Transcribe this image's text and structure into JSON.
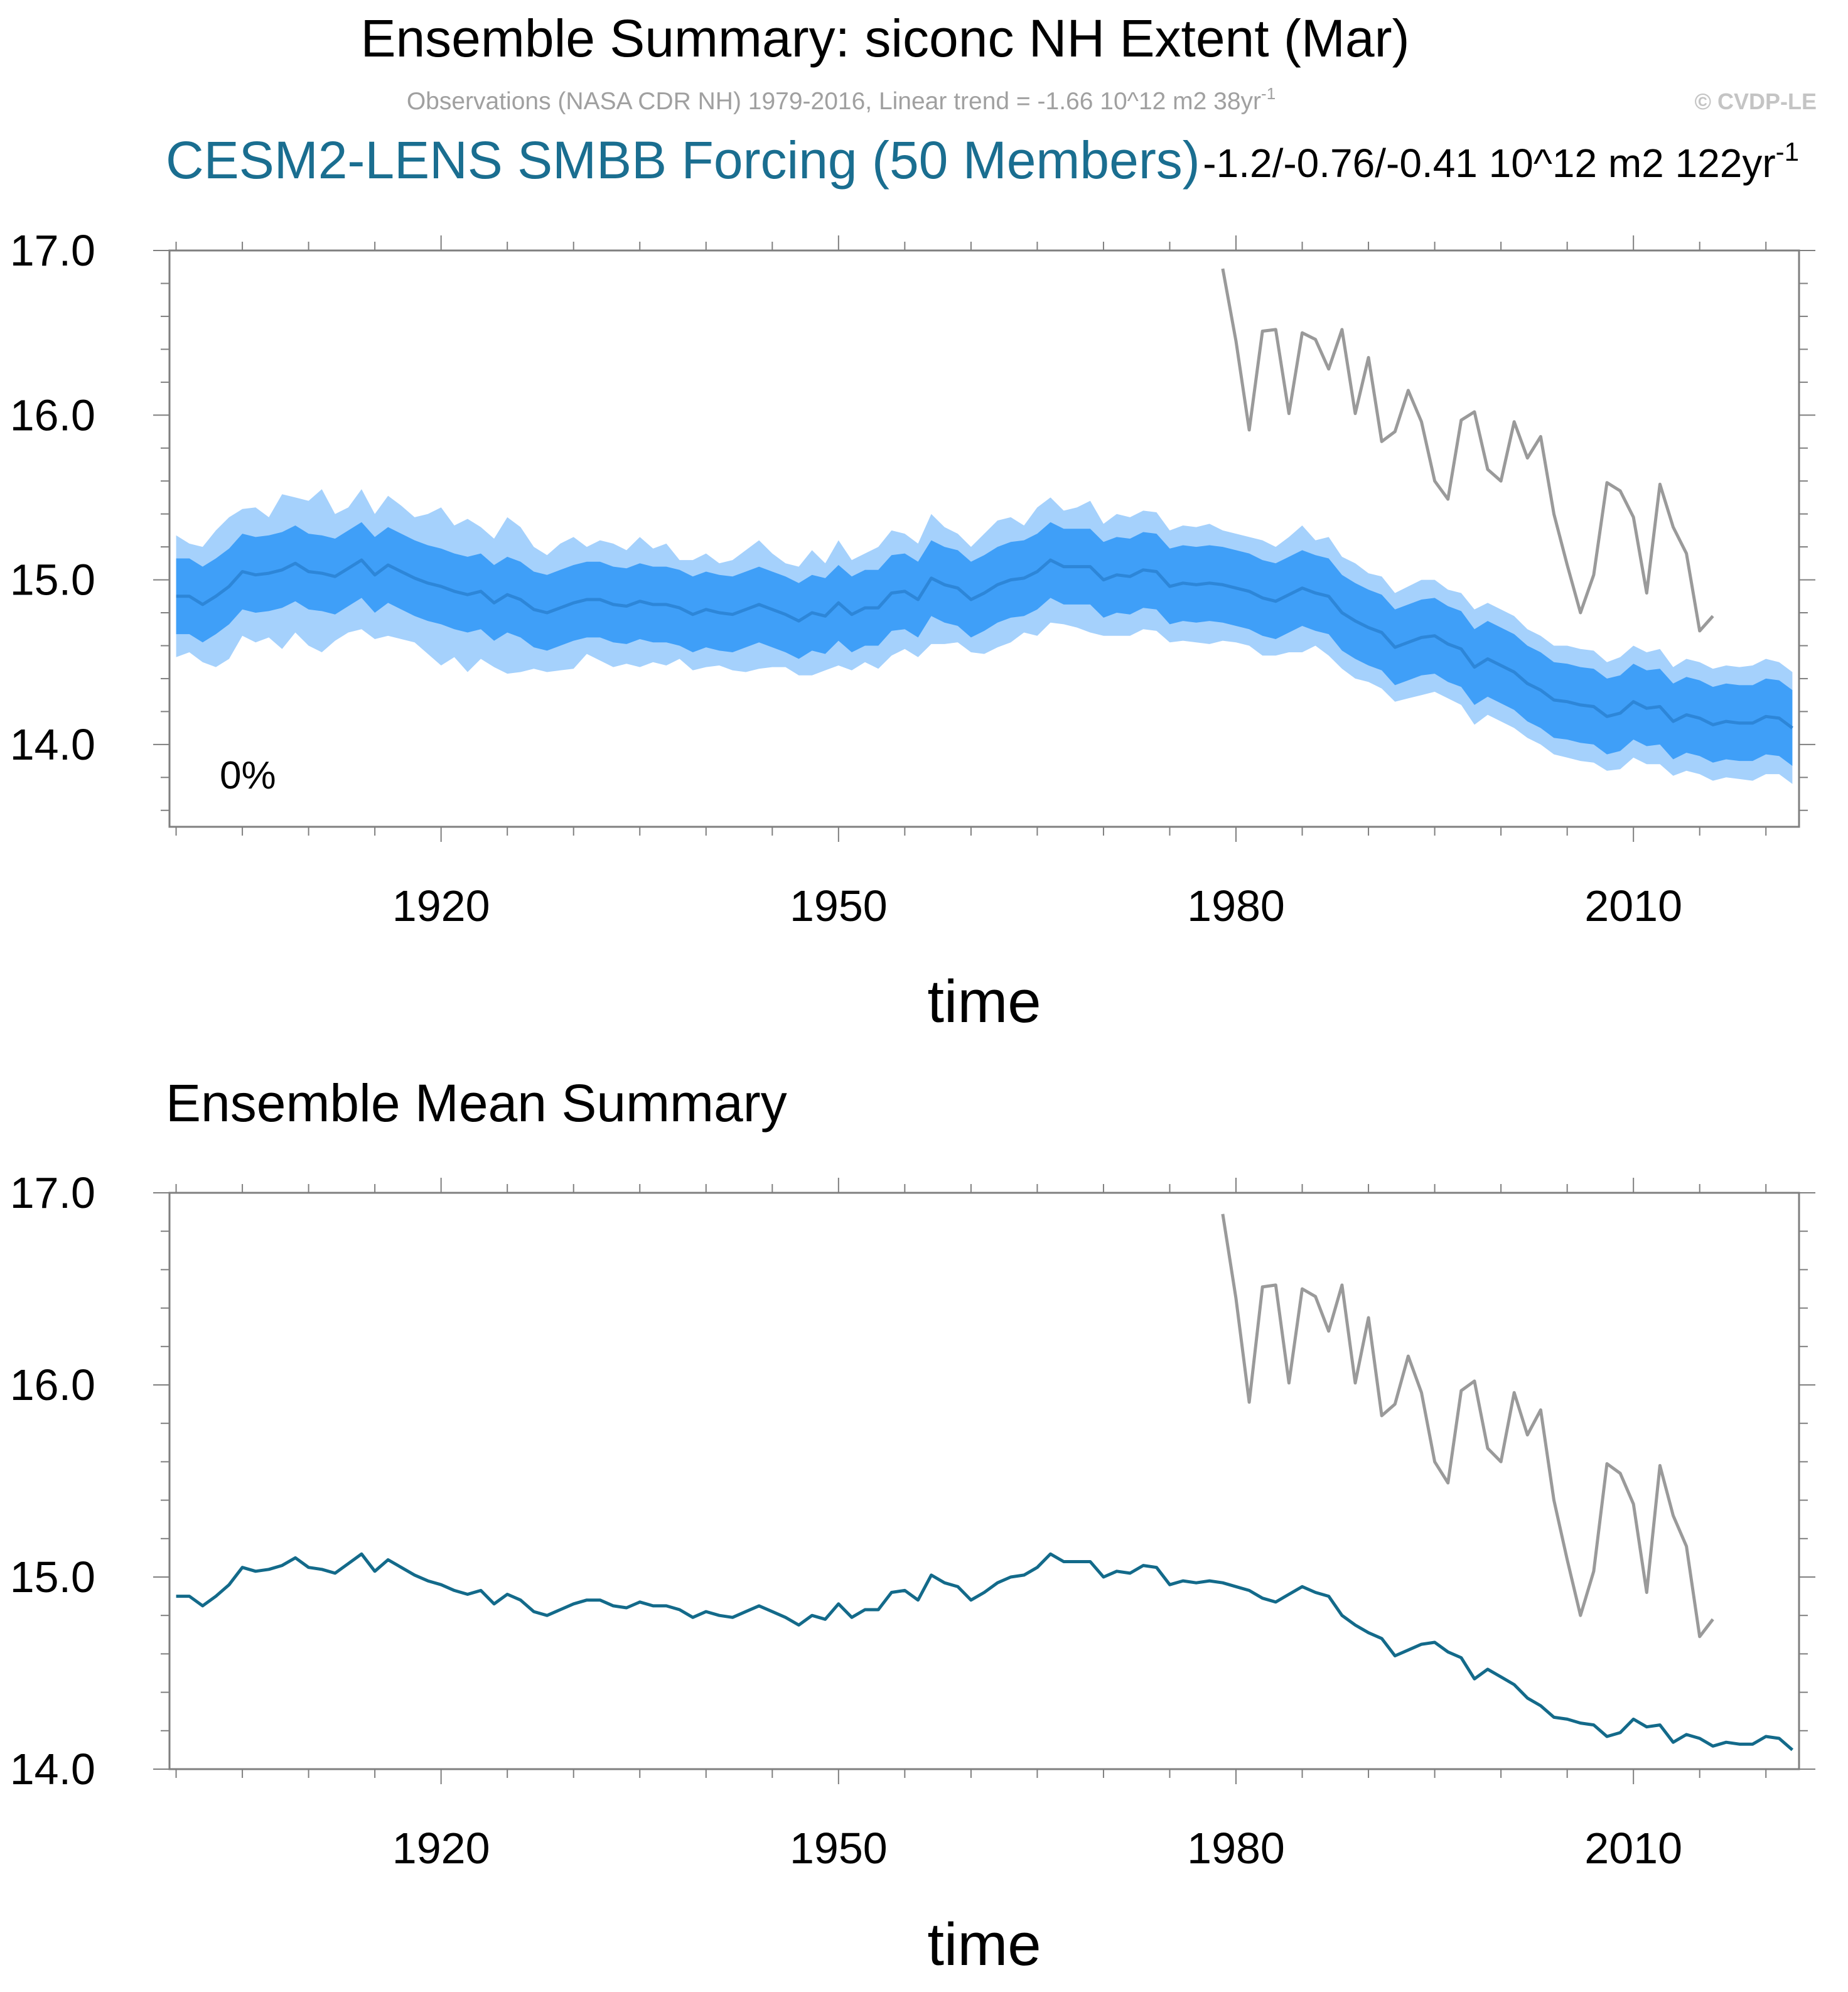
{
  "header": {
    "title": "Ensemble Summary: siconc NH Extent (Mar)",
    "obs_note": "Observations (NASA CDR NH) 1979-2016, Linear trend = -1.66 10^12 m2 38yr",
    "obs_note_sup": "-1",
    "copyright": "© CVDP-LE",
    "model_label": "CESM2-LENS SMBB Forcing (50 Members)",
    "trend_text": "-1.2/-0.76/-0.41 10^12 m2 122yr",
    "trend_sup": "-1"
  },
  "colors": {
    "outer_band": "#a5d1fc",
    "inner_band": "#3f9ff8",
    "mean_top": "#2d86d8",
    "mean_bottom": "#136a8a",
    "obs": "#9a9a9a",
    "model_label": "#1a6e90",
    "obs_note": "#a0a0a0",
    "copyright": "#c4c4c4"
  },
  "chart_data": [
    {
      "type": "area",
      "title": "",
      "panel_note": "0%",
      "xlabel": "time",
      "ylabel": "",
      "xlim": [
        1899.5,
        2022.5
      ],
      "ylim": [
        13.5,
        17.0
      ],
      "x_ticks": [
        1920,
        1950,
        1980,
        2010
      ],
      "x_tick_labels": [
        "1920",
        "1950",
        "1980",
        "2010"
      ],
      "y_ticks": [
        14.0,
        15.0,
        16.0,
        17.0
      ],
      "y_tick_labels": [
        "14.0",
        "15.0",
        "16.0",
        "17.0"
      ],
      "x": [
        1900,
        1901,
        1902,
        1903,
        1904,
        1905,
        1906,
        1907,
        1908,
        1909,
        1910,
        1911,
        1912,
        1913,
        1914,
        1915,
        1916,
        1917,
        1918,
        1919,
        1920,
        1921,
        1922,
        1923,
        1924,
        1925,
        1926,
        1927,
        1928,
        1929,
        1930,
        1931,
        1932,
        1933,
        1934,
        1935,
        1936,
        1937,
        1938,
        1939,
        1940,
        1941,
        1942,
        1943,
        1944,
        1945,
        1946,
        1947,
        1948,
        1949,
        1950,
        1951,
        1952,
        1953,
        1954,
        1955,
        1956,
        1957,
        1958,
        1959,
        1960,
        1961,
        1962,
        1963,
        1964,
        1965,
        1966,
        1967,
        1968,
        1969,
        1970,
        1971,
        1972,
        1973,
        1974,
        1975,
        1976,
        1977,
        1978,
        1979,
        1980,
        1981,
        1982,
        1983,
        1984,
        1985,
        1986,
        1987,
        1988,
        1989,
        1990,
        1991,
        1992,
        1993,
        1994,
        1995,
        1996,
        1997,
        1998,
        1999,
        2000,
        2001,
        2002,
        2003,
        2004,
        2005,
        2006,
        2007,
        2008,
        2009,
        2010,
        2011,
        2012,
        2013,
        2014,
        2015,
        2016,
        2017,
        2018,
        2019,
        2020,
        2021,
        2022
      ],
      "series": [
        {
          "name": "ensemble_mean",
          "values": [
            14.9,
            14.9,
            14.85,
            14.9,
            14.96,
            15.05,
            15.03,
            15.04,
            15.06,
            15.1,
            15.05,
            15.04,
            15.02,
            15.07,
            15.12,
            15.03,
            15.09,
            15.05,
            15.01,
            14.98,
            14.96,
            14.93,
            14.91,
            14.93,
            14.86,
            14.91,
            14.88,
            14.82,
            14.8,
            14.83,
            14.86,
            14.88,
            14.88,
            14.85,
            14.84,
            14.87,
            14.85,
            14.85,
            14.83,
            14.79,
            14.82,
            14.8,
            14.79,
            14.82,
            14.85,
            14.82,
            14.79,
            14.75,
            14.8,
            14.78,
            14.86,
            14.79,
            14.83,
            14.83,
            14.92,
            14.93,
            14.88,
            15.01,
            14.97,
            14.95,
            14.88,
            14.92,
            14.97,
            15.0,
            15.01,
            15.05,
            15.12,
            15.08,
            15.08,
            15.08,
            15.0,
            15.03,
            15.02,
            15.06,
            15.05,
            14.96,
            14.98,
            14.97,
            14.98,
            14.97,
            14.95,
            14.93,
            14.89,
            14.87,
            14.91,
            14.95,
            14.92,
            14.9,
            14.8,
            14.75,
            14.71,
            14.68,
            14.59,
            14.62,
            14.65,
            14.66,
            14.61,
            14.58,
            14.47,
            14.52,
            14.48,
            14.44,
            14.37,
            14.33,
            14.27,
            14.26,
            14.24,
            14.23,
            14.17,
            14.19,
            14.26,
            14.22,
            14.23,
            14.14,
            14.18,
            14.16,
            14.12,
            14.14,
            14.13,
            14.13,
            14.17,
            14.16,
            14.1
          ]
        },
        {
          "name": "inner_band_upper",
          "values": [
            15.13,
            15.13,
            15.08,
            15.13,
            15.19,
            15.28,
            15.26,
            15.27,
            15.29,
            15.33,
            15.28,
            15.27,
            15.25,
            15.3,
            15.35,
            15.26,
            15.32,
            15.28,
            15.24,
            15.21,
            15.19,
            15.16,
            15.14,
            15.16,
            15.09,
            15.14,
            15.11,
            15.05,
            15.03,
            15.06,
            15.09,
            15.11,
            15.11,
            15.08,
            15.07,
            15.1,
            15.08,
            15.08,
            15.06,
            15.02,
            15.05,
            15.03,
            15.02,
            15.05,
            15.08,
            15.05,
            15.02,
            14.98,
            15.03,
            15.01,
            15.09,
            15.02,
            15.06,
            15.06,
            15.15,
            15.16,
            15.11,
            15.24,
            15.2,
            15.18,
            15.11,
            15.15,
            15.2,
            15.23,
            15.24,
            15.28,
            15.35,
            15.31,
            15.31,
            15.31,
            15.23,
            15.26,
            15.25,
            15.29,
            15.28,
            15.19,
            15.21,
            15.2,
            15.21,
            15.2,
            15.18,
            15.16,
            15.12,
            15.1,
            15.14,
            15.18,
            15.15,
            15.13,
            15.03,
            14.98,
            14.94,
            14.91,
            14.82,
            14.85,
            14.88,
            14.89,
            14.84,
            14.81,
            14.7,
            14.75,
            14.71,
            14.67,
            14.6,
            14.56,
            14.5,
            14.49,
            14.47,
            14.46,
            14.4,
            14.42,
            14.49,
            14.45,
            14.46,
            14.37,
            14.41,
            14.39,
            14.35,
            14.37,
            14.36,
            14.36,
            14.4,
            14.39,
            14.33
          ]
        },
        {
          "name": "inner_band_lower",
          "values": [
            14.67,
            14.67,
            14.62,
            14.67,
            14.73,
            14.82,
            14.8,
            14.81,
            14.83,
            14.87,
            14.82,
            14.81,
            14.79,
            14.84,
            14.89,
            14.8,
            14.86,
            14.82,
            14.78,
            14.75,
            14.73,
            14.7,
            14.68,
            14.7,
            14.63,
            14.68,
            14.65,
            14.59,
            14.57,
            14.6,
            14.63,
            14.65,
            14.65,
            14.62,
            14.61,
            14.64,
            14.62,
            14.62,
            14.6,
            14.56,
            14.59,
            14.57,
            14.56,
            14.59,
            14.62,
            14.59,
            14.56,
            14.52,
            14.57,
            14.55,
            14.63,
            14.56,
            14.6,
            14.6,
            14.69,
            14.7,
            14.65,
            14.78,
            14.74,
            14.72,
            14.65,
            14.69,
            14.74,
            14.77,
            14.78,
            14.82,
            14.89,
            14.85,
            14.85,
            14.85,
            14.77,
            14.8,
            14.79,
            14.83,
            14.82,
            14.73,
            14.75,
            14.74,
            14.75,
            14.74,
            14.72,
            14.7,
            14.66,
            14.64,
            14.68,
            14.72,
            14.69,
            14.67,
            14.57,
            14.52,
            14.48,
            14.45,
            14.36,
            14.39,
            14.42,
            14.43,
            14.38,
            14.35,
            14.24,
            14.29,
            14.25,
            14.21,
            14.14,
            14.1,
            14.04,
            14.03,
            14.01,
            14.0,
            13.94,
            13.96,
            14.03,
            13.99,
            14.0,
            13.91,
            13.95,
            13.93,
            13.89,
            13.91,
            13.9,
            13.9,
            13.94,
            13.93,
            13.87
          ]
        },
        {
          "name": "outer_band_upper",
          "values": [
            15.27,
            15.22,
            15.2,
            15.3,
            15.38,
            15.43,
            15.44,
            15.38,
            15.52,
            15.5,
            15.48,
            15.55,
            15.4,
            15.44,
            15.55,
            15.4,
            15.51,
            15.45,
            15.38,
            15.4,
            15.44,
            15.33,
            15.37,
            15.32,
            15.25,
            15.38,
            15.32,
            15.2,
            15.15,
            15.22,
            15.26,
            15.2,
            15.24,
            15.22,
            15.18,
            15.26,
            15.19,
            15.22,
            15.12,
            15.12,
            15.16,
            15.1,
            15.12,
            15.18,
            15.24,
            15.16,
            15.1,
            15.08,
            15.18,
            15.1,
            15.24,
            15.12,
            15.16,
            15.2,
            15.3,
            15.28,
            15.22,
            15.4,
            15.32,
            15.28,
            15.2,
            15.28,
            15.36,
            15.38,
            15.33,
            15.44,
            15.5,
            15.42,
            15.44,
            15.48,
            15.34,
            15.4,
            15.38,
            15.42,
            15.41,
            15.3,
            15.33,
            15.32,
            15.34,
            15.3,
            15.28,
            15.26,
            15.24,
            15.2,
            15.26,
            15.33,
            15.24,
            15.26,
            15.14,
            15.1,
            15.04,
            15.02,
            14.92,
            14.96,
            15.0,
            15.0,
            14.94,
            14.92,
            14.82,
            14.86,
            14.82,
            14.78,
            14.7,
            14.66,
            14.6,
            14.6,
            14.58,
            14.57,
            14.5,
            14.53,
            14.6,
            14.56,
            14.58,
            14.47,
            14.52,
            14.5,
            14.46,
            14.48,
            14.47,
            14.48,
            14.52,
            14.5,
            14.44
          ]
        },
        {
          "name": "outer_band_lower",
          "values": [
            14.53,
            14.56,
            14.5,
            14.47,
            14.52,
            14.66,
            14.62,
            14.65,
            14.58,
            14.68,
            14.6,
            14.56,
            14.63,
            14.68,
            14.7,
            14.64,
            14.66,
            14.64,
            14.62,
            14.55,
            14.48,
            14.53,
            14.44,
            14.52,
            14.47,
            14.43,
            14.44,
            14.46,
            14.44,
            14.45,
            14.46,
            14.55,
            14.51,
            14.47,
            14.49,
            14.47,
            14.5,
            14.48,
            14.52,
            14.45,
            14.47,
            14.48,
            14.45,
            14.44,
            14.46,
            14.47,
            14.47,
            14.42,
            14.42,
            14.45,
            14.48,
            14.45,
            14.5,
            14.46,
            14.54,
            14.58,
            14.53,
            14.61,
            14.61,
            14.62,
            14.56,
            14.55,
            14.59,
            14.62,
            14.68,
            14.66,
            14.74,
            14.73,
            14.71,
            14.68,
            14.66,
            14.66,
            14.66,
            14.7,
            14.69,
            14.62,
            14.63,
            14.62,
            14.61,
            14.63,
            14.62,
            14.6,
            14.54,
            14.54,
            14.56,
            14.56,
            14.6,
            14.54,
            14.46,
            14.4,
            14.38,
            14.34,
            14.26,
            14.28,
            14.3,
            14.32,
            14.28,
            14.24,
            14.12,
            14.18,
            14.14,
            14.1,
            14.04,
            14.0,
            13.94,
            13.92,
            13.9,
            13.89,
            13.84,
            13.85,
            13.92,
            13.88,
            13.88,
            13.81,
            13.84,
            13.82,
            13.78,
            13.8,
            13.79,
            13.78,
            13.82,
            13.82,
            13.76
          ]
        },
        {
          "name": "observations",
          "x": [
            1979,
            1980,
            1981,
            1982,
            1983,
            1984,
            1985,
            1986,
            1987,
            1988,
            1989,
            1990,
            1991,
            1992,
            1993,
            1994,
            1995,
            1996,
            1997,
            1998,
            1999,
            2000,
            2001,
            2002,
            2003,
            2004,
            2005,
            2006,
            2007,
            2008,
            2009,
            2010,
            2011,
            2012,
            2013,
            2014,
            2015,
            2016
          ],
          "values": [
            16.89,
            16.45,
            15.91,
            16.51,
            16.52,
            16.01,
            16.5,
            16.46,
            16.28,
            16.52,
            16.01,
            16.35,
            15.84,
            15.9,
            16.15,
            15.96,
            15.6,
            15.49,
            15.97,
            16.02,
            15.67,
            15.6,
            15.96,
            15.74,
            15.87,
            15.4,
            15.09,
            14.8,
            15.03,
            15.59,
            15.54,
            15.38,
            14.92,
            15.58,
            15.32,
            15.16,
            14.69,
            14.78
          ]
        }
      ]
    },
    {
      "type": "line",
      "title": "Ensemble Mean Summary",
      "xlabel": "time",
      "ylabel": "",
      "xlim": [
        1899.5,
        2022.5
      ],
      "ylim": [
        14.0,
        17.0
      ],
      "x_ticks": [
        1920,
        1950,
        1980,
        2010
      ],
      "x_tick_labels": [
        "1920",
        "1950",
        "1980",
        "2010"
      ],
      "y_ticks": [
        14.0,
        15.0,
        16.0,
        17.0
      ],
      "y_tick_labels": [
        "14.0",
        "15.0",
        "16.0",
        "17.0"
      ],
      "series_ref": "same x, ensemble_mean and observations values as panel 1"
    }
  ]
}
